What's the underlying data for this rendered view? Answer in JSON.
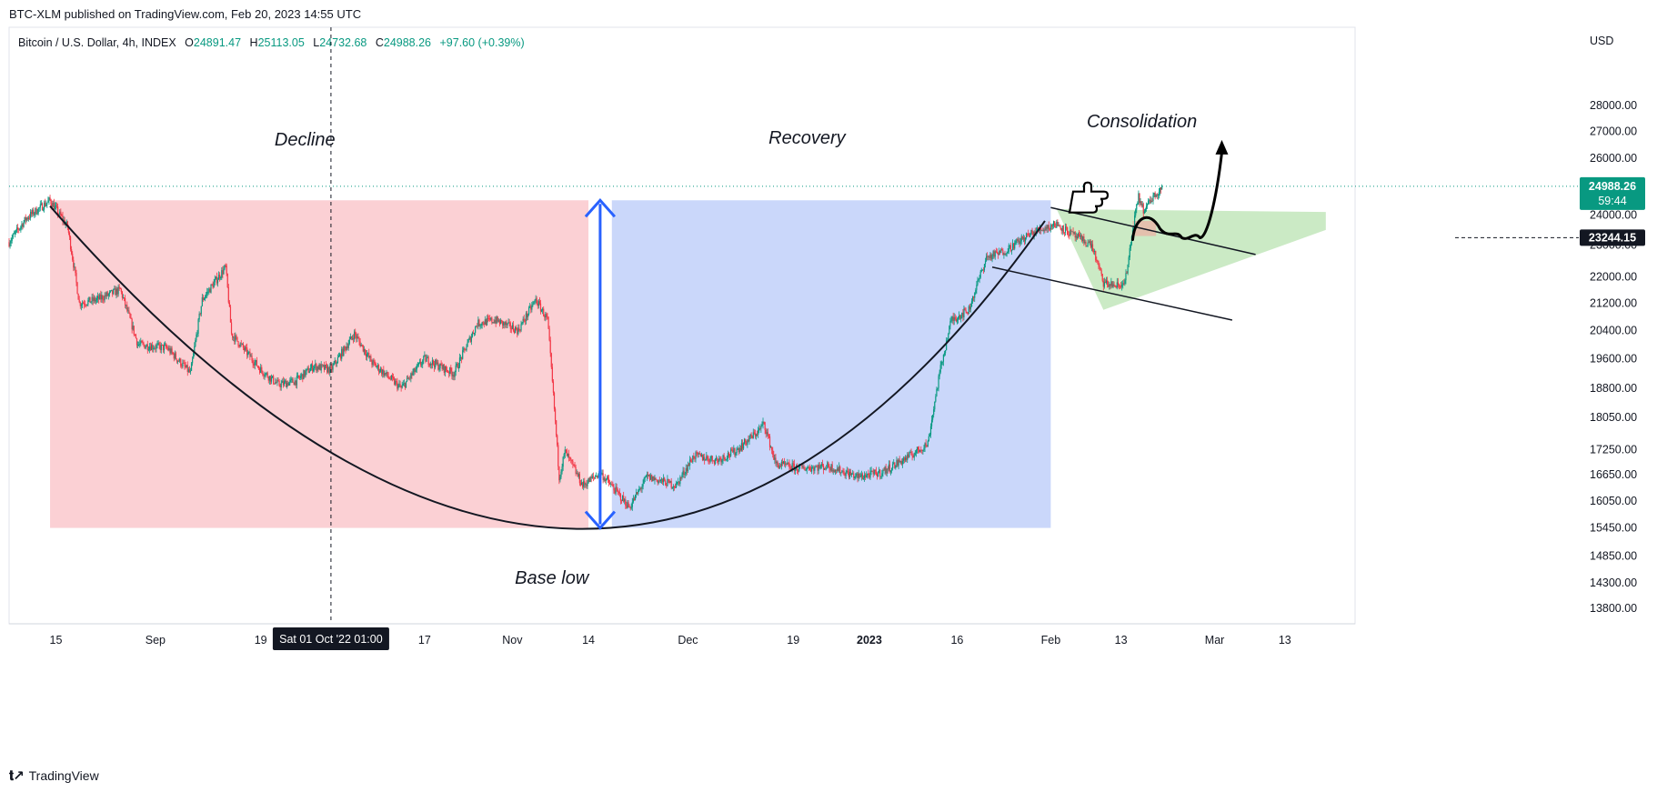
{
  "published_line": "BTC-XLM published on TradingView.com, Feb 20, 2023 14:55 UTC",
  "legend": {
    "symbol": "Bitcoin / U.S. Dollar, 4h, INDEX",
    "open_label": "O",
    "open": "24891.47",
    "high_label": "H",
    "high": "25113.05",
    "low_label": "L",
    "low": "24732.68",
    "close_label": "C",
    "close": "24988.26",
    "change": "+97.60 (+0.39%)"
  },
  "currency": "USD",
  "footer_brand": "TradingView",
  "colors": {
    "decline_zone": "#f7a9b0",
    "recovery_zone": "#9fb7f5",
    "consolidation_zone": "#b9e3b1",
    "up_candle": "#089981",
    "down_candle": "#f23645",
    "arrow": "#2962ff",
    "current_price_bg": "#089981"
  },
  "chart_data": {
    "type": "candlestick",
    "symbol": "BTCUSD",
    "interval": "4h",
    "y_scale": "log",
    "ylim": [
      13500,
      30000
    ],
    "y_ticks": [
      28000,
      27000,
      26000,
      24000,
      23000,
      22000,
      21200,
      20400,
      19600,
      18800,
      18050,
      17250,
      16650,
      16050,
      15450,
      14850,
      14300,
      13800
    ],
    "y_tick_labels": [
      "28000.00",
      "27000.00",
      "26000.00",
      "24000.00",
      "23000.00",
      "22000.00",
      "21200.00",
      "20400.00",
      "19600.00",
      "18800.00",
      "18050.00",
      "17250.00",
      "16650.00",
      "16050.00",
      "15450.00",
      "14850.00",
      "14300.00",
      "13800.00"
    ],
    "x_tick_labels": [
      "15",
      "Sep",
      "19",
      "17",
      "Nov",
      "14",
      "Dec",
      "19",
      "2023",
      "16",
      "Feb",
      "13",
      "Mar",
      "13"
    ],
    "x_tick_dates": [
      "2022-08-15",
      "2022-09-01",
      "2022-09-19",
      "2022-10-17",
      "2022-11-01",
      "2022-11-14",
      "2022-12-01",
      "2022-12-19",
      "2023-01-01",
      "2023-01-16",
      "2023-02-01",
      "2023-02-13",
      "2023-03-01",
      "2023-03-13"
    ],
    "x_range": [
      "2022-08-07",
      "2023-03-25"
    ],
    "crosshair_label": "Sat 01 Oct '22   01:00",
    "crosshair_date": "2022-10-01",
    "current_price": "24988.26",
    "current_price_value": 24988.26,
    "countdown": "59:44",
    "marked_price": "23244.15",
    "marked_price_value": 23244.15,
    "price_path": [
      [
        "2022-08-07",
        23100
      ],
      [
        "2022-08-10",
        23900
      ],
      [
        "2022-08-14",
        24500
      ],
      [
        "2022-08-17",
        23600
      ],
      [
        "2022-08-19",
        21200
      ],
      [
        "2022-08-22",
        21300
      ],
      [
        "2022-08-26",
        21600
      ],
      [
        "2022-08-29",
        20000
      ],
      [
        "2022-09-03",
        19900
      ],
      [
        "2022-09-07",
        19200
      ],
      [
        "2022-09-09",
        21300
      ],
      [
        "2022-09-13",
        22300
      ],
      [
        "2022-09-14",
        20300
      ],
      [
        "2022-09-19",
        19300
      ],
      [
        "2022-09-22",
        18900
      ],
      [
        "2022-09-25",
        19000
      ],
      [
        "2022-09-28",
        19400
      ],
      [
        "2022-10-01",
        19300
      ],
      [
        "2022-10-05",
        20300
      ],
      [
        "2022-10-08",
        19500
      ],
      [
        "2022-10-13",
        18800
      ],
      [
        "2022-10-17",
        19600
      ],
      [
        "2022-10-22",
        19200
      ],
      [
        "2022-10-26",
        20600
      ],
      [
        "2022-10-29",
        20700
      ],
      [
        "2022-11-02",
        20400
      ],
      [
        "2022-11-05",
        21300
      ],
      [
        "2022-11-07",
        20700
      ],
      [
        "2022-11-08",
        18600
      ],
      [
        "2022-11-09",
        16600
      ],
      [
        "2022-11-10",
        17200
      ],
      [
        "2022-11-13",
        16400
      ],
      [
        "2022-11-16",
        16700
      ],
      [
        "2022-11-21",
        15900
      ],
      [
        "2022-11-24",
        16600
      ],
      [
        "2022-11-29",
        16400
      ],
      [
        "2022-12-02",
        17100
      ],
      [
        "2022-12-06",
        17000
      ],
      [
        "2022-12-09",
        17200
      ],
      [
        "2022-12-13",
        17700
      ],
      [
        "2022-12-14",
        17900
      ],
      [
        "2022-12-16",
        16900
      ],
      [
        "2022-12-20",
        16800
      ],
      [
        "2022-12-25",
        16850
      ],
      [
        "2022-12-30",
        16600
      ],
      [
        "2023-01-03",
        16700
      ],
      [
        "2023-01-08",
        17100
      ],
      [
        "2023-01-11",
        17400
      ],
      [
        "2023-01-13",
        19200
      ],
      [
        "2023-01-15",
        20700
      ],
      [
        "2023-01-18",
        21000
      ],
      [
        "2023-01-21",
        22600
      ],
      [
        "2023-01-24",
        22800
      ],
      [
        "2023-01-28",
        23300
      ],
      [
        "2023-01-30",
        23500
      ],
      [
        "2023-02-02",
        23700
      ],
      [
        "2023-02-05",
        23300
      ],
      [
        "2023-02-08",
        23000
      ],
      [
        "2023-02-10",
        21800
      ],
      [
        "2023-02-13",
        21700
      ],
      [
        "2023-02-14",
        22100
      ],
      [
        "2023-02-15",
        23500
      ],
      [
        "2023-02-16",
        24600
      ],
      [
        "2023-02-17",
        24100
      ],
      [
        "2023-02-18",
        24500
      ],
      [
        "2023-02-20",
        24988
      ]
    ],
    "zones": [
      {
        "label": "Decline",
        "from": "2022-08-14",
        "to": "2022-11-14",
        "top": 24500,
        "bottom": 15450
      },
      {
        "label": "Recovery",
        "from": "2022-11-18",
        "to": "2023-02-01",
        "top": 24500,
        "bottom": 15450
      },
      {
        "label": "Consolidation",
        "from": "2023-02-02",
        "to": "2023-03-20",
        "top": 24100,
        "bottom": 21000
      }
    ],
    "annotations": [
      "Decline",
      "Recovery",
      "Consolidation",
      "Base low"
    ]
  }
}
